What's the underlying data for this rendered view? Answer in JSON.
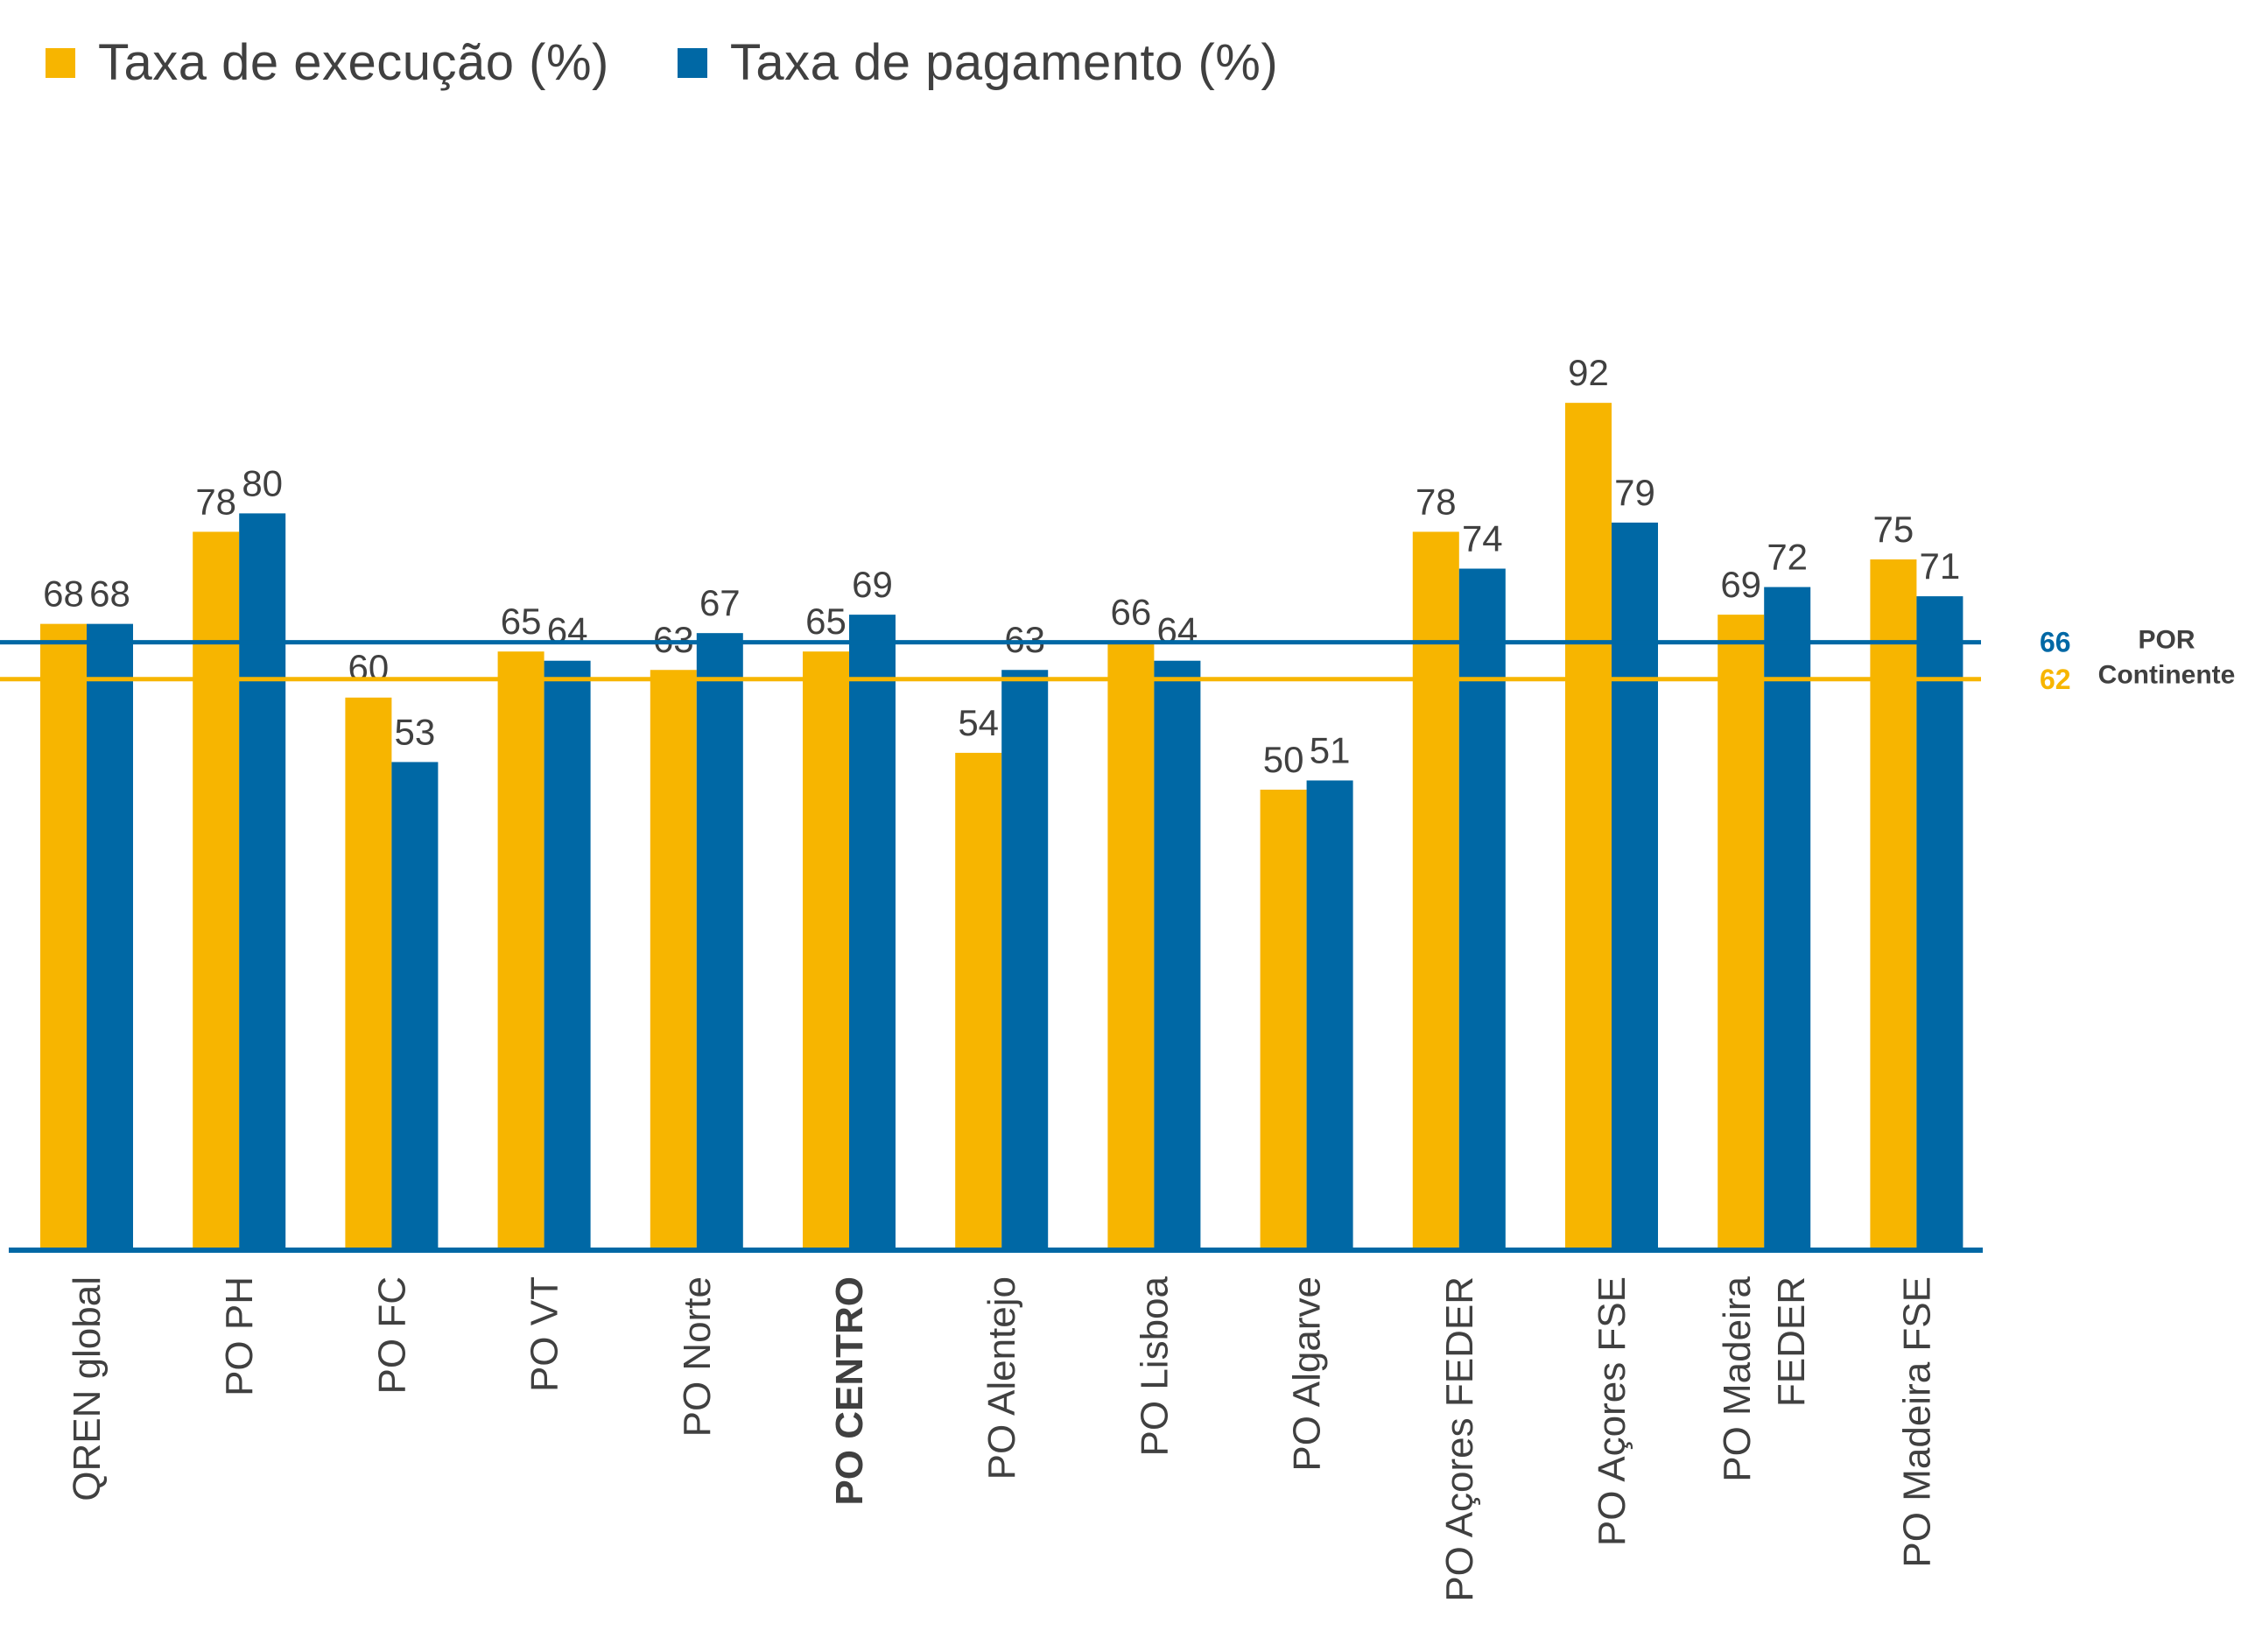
{
  "chart_data": {
    "type": "bar",
    "categories": [
      "QREN global",
      "PO PH",
      "PO FC",
      "PO VT",
      "PO Norte",
      "PO CENTRO",
      "PO Alentejo",
      "PO Lisboa",
      "PO Algarve",
      "PO Açores FEDER",
      "PO Açores FSE",
      "PO Madeira FEDER",
      "PO Madeira FSE"
    ],
    "highlight_category": "PO CENTRO",
    "series": [
      {
        "name": "Taxa de execução (%)",
        "color": "#F7B500",
        "values": [
          68,
          78,
          60,
          65,
          63,
          65,
          54,
          66,
          50,
          78,
          92,
          69,
          75
        ]
      },
      {
        "name": "Taxa de pagamento (%)",
        "color": "#0068A5",
        "values": [
          68,
          80,
          53,
          64,
          67,
          69,
          63,
          64,
          51,
          74,
          79,
          72,
          71
        ]
      }
    ],
    "reference_lines": [
      {
        "value": 66,
        "label": "66",
        "color": "#0068A5"
      },
      {
        "value": 62,
        "label": "62",
        "color": "#F7B500"
      }
    ],
    "reference_caption": [
      "POR",
      "Continente"
    ],
    "ylim": [
      0,
      100
    ],
    "grid": false,
    "legend": "top-left"
  }
}
